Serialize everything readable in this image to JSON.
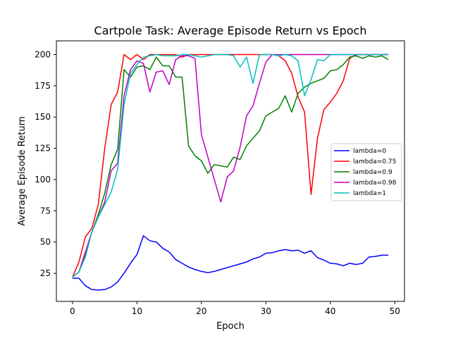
{
  "chart_data": {
    "type": "line",
    "title": "Cartpole Task: Average Episode Return vs Epoch",
    "xlabel": "Epoch",
    "ylabel": "Average Episode Return",
    "xlim": [
      -2.5,
      51.5
    ],
    "ylim": [
      2.5,
      211
    ],
    "xticks": [
      0,
      10,
      20,
      30,
      40,
      50
    ],
    "yticks": [
      25,
      50,
      75,
      100,
      125,
      150,
      175,
      200
    ],
    "grid": false,
    "legend_position": "center-right",
    "series": [
      {
        "name": "lambda=0",
        "color": "#0000ff",
        "values": [
          21,
          21,
          15,
          12,
          11.5,
          12,
          14,
          18,
          25,
          33,
          40,
          55,
          51,
          50,
          45,
          42,
          36,
          33,
          30,
          28,
          26.5,
          25.5,
          26.5,
          28,
          29.5,
          31,
          32.5,
          34,
          36.5,
          38,
          41,
          41.5,
          43,
          44,
          43,
          43.5,
          41,
          43,
          37.5,
          35.5,
          33,
          32.5,
          31,
          33,
          32,
          33,
          38,
          38.5,
          39.5,
          39.5
        ]
      },
      {
        "name": "lambda=0.75",
        "color": "#ff0000",
        "values": [
          22,
          34,
          54,
          61,
          80,
          125,
          160,
          170,
          200,
          196,
          200,
          196,
          200,
          200,
          200,
          200,
          200,
          198,
          200,
          200,
          200,
          200,
          200,
          200,
          200,
          200,
          200,
          200,
          200,
          200,
          200,
          200,
          199,
          195,
          185,
          166,
          154,
          88,
          133,
          156,
          162,
          169,
          179,
          197,
          200,
          200,
          200,
          200,
          200,
          200
        ]
      },
      {
        "name": "lambda=0.9",
        "color": "#008000",
        "values": [
          22,
          26,
          40,
          58,
          72,
          89,
          112,
          124,
          188,
          182,
          190,
          191,
          188,
          198,
          191,
          191,
          182,
          182,
          127,
          119,
          115,
          105,
          112,
          111,
          110,
          118,
          116,
          127,
          133,
          139,
          151,
          154,
          157,
          167,
          154,
          169,
          174,
          177,
          179,
          181,
          187,
          188,
          192,
          198,
          199,
          197,
          199,
          198,
          199,
          196
        ]
      },
      {
        "name": "lambda=0.98",
        "color": "#bf00bf",
        "values": [
          22,
          26,
          42,
          58,
          70,
          82,
          107,
          113,
          167,
          188,
          195,
          193,
          170,
          186,
          187,
          176,
          196,
          199,
          199,
          197,
          136,
          118,
          100,
          82,
          102,
          107,
          126,
          151,
          159,
          177,
          194,
          200,
          200,
          200,
          200,
          200,
          200,
          200,
          200,
          200,
          200,
          200,
          200,
          200,
          200,
          200,
          200,
          200,
          200,
          200
        ]
      },
      {
        "name": "lambda=1",
        "color": "#00bfbf",
        "values": [
          22,
          26,
          38,
          58,
          70,
          80,
          90,
          108,
          160,
          185,
          192,
          198,
          199,
          200,
          199,
          199,
          199,
          200,
          200,
          199,
          198,
          199,
          200,
          200,
          200,
          199,
          190,
          198,
          177,
          200,
          200,
          200,
          199,
          200,
          199,
          195,
          167,
          180,
          196,
          195,
          200,
          200,
          200,
          200,
          200,
          200,
          200,
          200,
          200,
          200
        ]
      }
    ]
  }
}
